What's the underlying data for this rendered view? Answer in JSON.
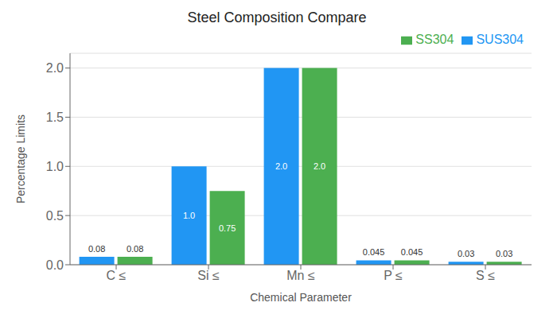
{
  "chart_data": {
    "type": "bar",
    "title": "Steel Composition Compare",
    "x_label": "Chemical Parameter",
    "y_label": "Percentage Limits",
    "categories": [
      "C ≤",
      "Si ≤",
      "Mn ≤",
      "P ≤",
      "S ≤"
    ],
    "series": [
      {
        "name": "SUS304",
        "color": "#2196F3",
        "values": [
          0.08,
          1.0,
          2.0,
          0.045,
          0.03
        ],
        "value_labels": [
          "0.08",
          "1.0",
          "2.0",
          "0.045",
          "0.03"
        ]
      },
      {
        "name": "SS304",
        "color": "#4CAF50",
        "values": [
          0.08,
          0.75,
          2.0,
          0.045,
          0.03
        ],
        "value_labels": [
          "0.08",
          "0.75",
          "2.0",
          "0.045",
          "0.03"
        ]
      }
    ],
    "ylim": [
      0,
      2.15
    ],
    "yticks": [
      {
        "value": 0,
        "label": "0.0"
      },
      0.5,
      {
        "value": 1.0,
        "label": "1.0"
      },
      1.5,
      {
        "value": 2.0,
        "label": "2.0"
      }
    ],
    "grid": true,
    "legend": "upper right",
    "data_labels": true
  }
}
